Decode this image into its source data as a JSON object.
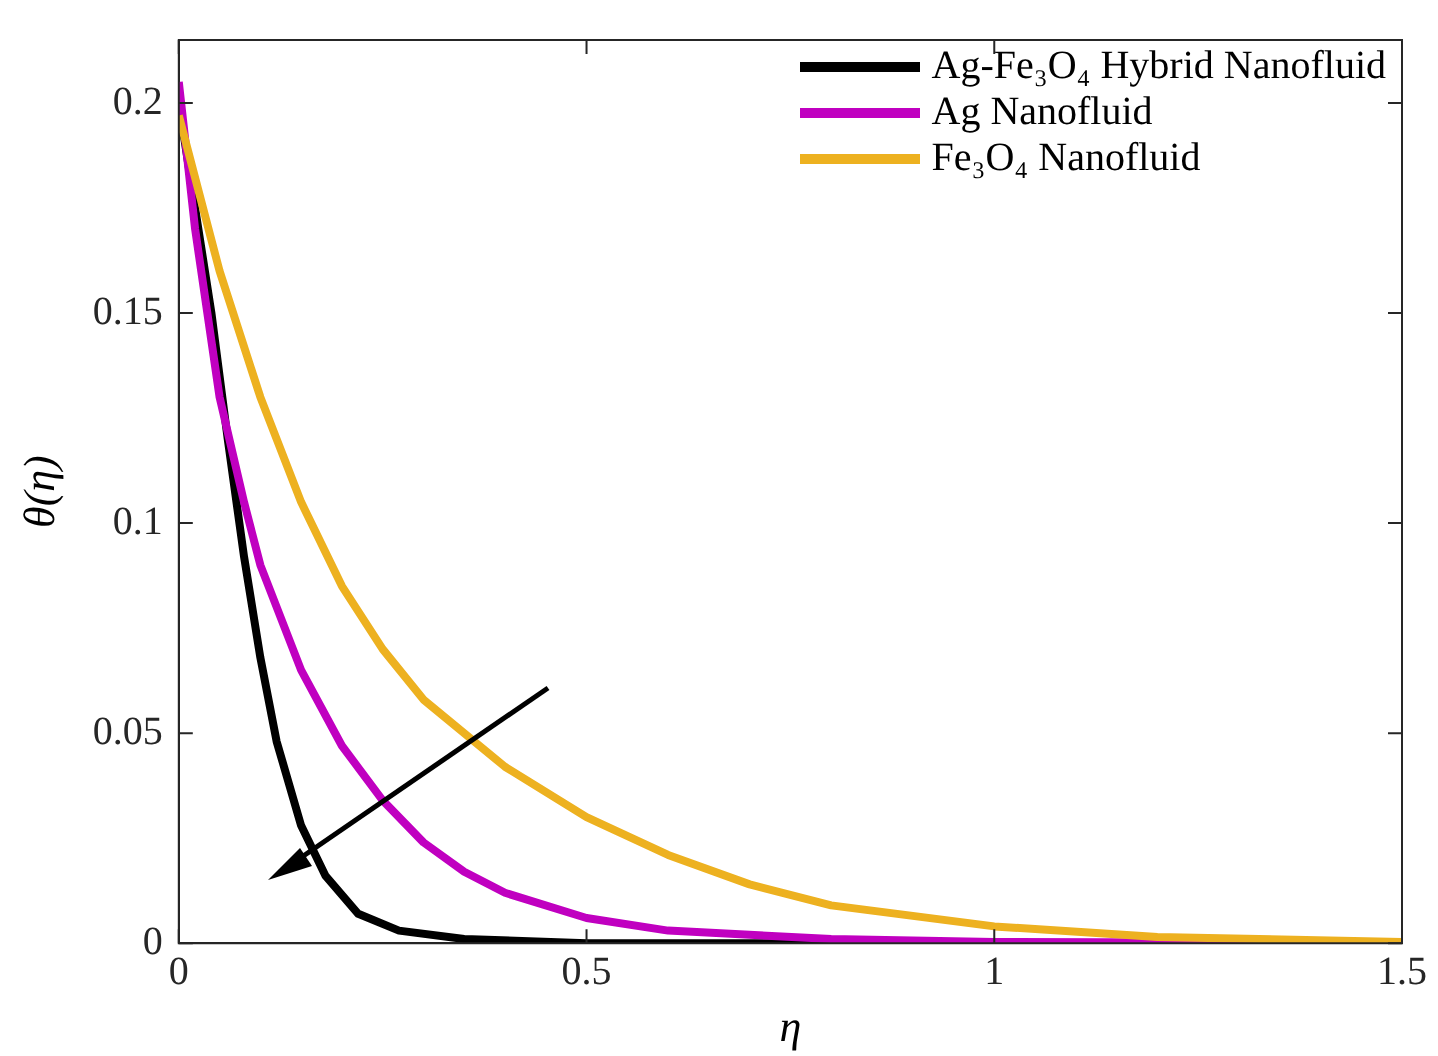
{
  "chart_data": {
    "type": "line",
    "xlabel": "η",
    "ylabel": "θ(η)",
    "xlim": [
      0,
      1.5
    ],
    "xticks": [
      0,
      0.5,
      1,
      1.5
    ],
    "ylim": [
      0,
      0.215
    ],
    "yticks": [
      0,
      0.05,
      0.1,
      0.15,
      0.2
    ],
    "grid": false,
    "legend": "top right",
    "marker": "none",
    "line_style": "solid",
    "series": [
      {
        "name": "Ag-Fe₃O₄ Hybrid Nanofluid",
        "color": "#000000",
        "x": [
          0,
          0.02,
          0.04,
          0.06,
          0.08,
          0.1,
          0.12,
          0.15,
          0.18,
          0.22,
          0.27,
          0.35,
          0.5,
          1,
          1.5
        ],
        "values": [
          0.2,
          0.175,
          0.15,
          0.12,
          0.092,
          0.068,
          0.048,
          0.028,
          0.016,
          0.007,
          0.003,
          0.001,
          0,
          0,
          0
        ]
      },
      {
        "name": "Ag Nanofluid",
        "color": "#c000c0",
        "x": [
          0,
          0.02,
          0.05,
          0.08,
          0.1,
          0.15,
          0.2,
          0.25,
          0.3,
          0.35,
          0.4,
          0.5,
          0.6,
          0.8,
          1,
          1.5
        ],
        "values": [
          0.205,
          0.17,
          0.13,
          0.105,
          0.09,
          0.065,
          0.047,
          0.034,
          0.024,
          0.017,
          0.012,
          0.006,
          0.003,
          0.001,
          0.0003,
          0
        ]
      },
      {
        "name": "Fe₃O₄ Nanofluid",
        "color": "#edb120",
        "x": [
          0,
          0.05,
          0.1,
          0.15,
          0.2,
          0.25,
          0.3,
          0.4,
          0.5,
          0.6,
          0.7,
          0.8,
          1,
          1.2,
          1.5
        ],
        "values": [
          0.197,
          0.16,
          0.13,
          0.105,
          0.085,
          0.07,
          0.058,
          0.042,
          0.03,
          0.021,
          0.014,
          0.009,
          0.004,
          0.0015,
          0.0003
        ]
      }
    ]
  }
}
